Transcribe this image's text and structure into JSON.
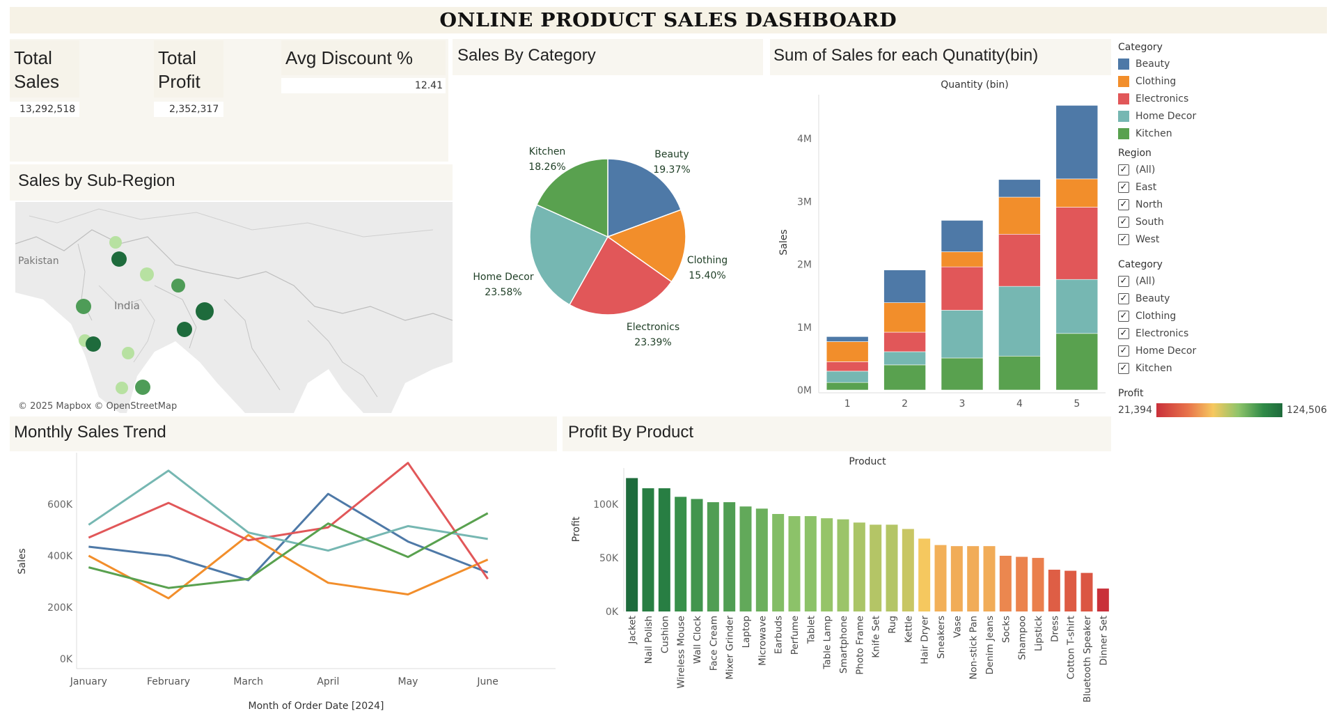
{
  "dashboard": {
    "title": "ONLINE PRODUCT SALES DASHBOARD"
  },
  "kpis": {
    "total_sales": {
      "label_line1": "Total",
      "label_line2": "Sales",
      "value": "13,292,518"
    },
    "total_profit": {
      "label_line1": "Total",
      "label_line2": "Profit",
      "value": "2,352,317"
    },
    "avg_discount": {
      "label": "Avg Discount %",
      "value": "12.41"
    }
  },
  "sections": {
    "map": "Sales by Sub-Region",
    "pie": "Sales By Category",
    "bins": "Sum of Sales for each Qunatity(bin)",
    "monthly": "Monthly Sales Trend",
    "profit": "Profit By Product"
  },
  "map": {
    "labels": {
      "country1": "Pakistan",
      "country2": "India"
    },
    "attribution": "© 2025 Mapbox  © OpenStreetMap"
  },
  "colors": {
    "Beauty": "#4e79a7",
    "Clothing": "#f28e2b",
    "Electronics": "#e15759",
    "Home Decor": "#76b7b2",
    "Kitchen": "#59a14f"
  },
  "legend": {
    "category_title": "Category",
    "categories": [
      "Beauty",
      "Clothing",
      "Electronics",
      "Home Decor",
      "Kitchen"
    ],
    "region_title": "Region",
    "regions": [
      "(All)",
      "East",
      "North",
      "South",
      "West"
    ],
    "category_filter_title": "Category",
    "category_filters": [
      "(All)",
      "Beauty",
      "Clothing",
      "Electronics",
      "Home Decor",
      "Kitchen"
    ],
    "profit_title": "Profit",
    "profit_min": "21,394",
    "profit_max": "124,506",
    "check_glyph": "✓"
  },
  "chart_data": [
    {
      "type": "pie",
      "title": "Sales By Category",
      "slices": [
        {
          "name": "Beauty",
          "value": 19.37,
          "label": "19.37%"
        },
        {
          "name": "Clothing",
          "value": 15.4,
          "label": "15.40%"
        },
        {
          "name": "Electronics",
          "value": 23.39,
          "label": "23.39%"
        },
        {
          "name": "Home Decor",
          "value": 23.58,
          "label": "23.58%"
        },
        {
          "name": "Kitchen",
          "value": 18.26,
          "label": "18.26%"
        }
      ]
    },
    {
      "type": "bar",
      "stacked": true,
      "title": "Sum of Sales for each Qunatity(bin)",
      "xlabel": "Quantity (bin)",
      "ylabel": "Sales",
      "categories": [
        "1",
        "2",
        "3",
        "4",
        "5"
      ],
      "yticks": [
        0,
        1000000,
        2000000,
        3000000,
        4000000
      ],
      "ytick_labels": [
        "0M",
        "1M",
        "2M",
        "3M",
        "4M"
      ],
      "ylim": [
        0,
        4700000
      ],
      "series": [
        {
          "name": "Kitchen",
          "values": [
            120000,
            400000,
            510000,
            540000,
            900000
          ]
        },
        {
          "name": "Home Decor",
          "values": [
            180000,
            210000,
            760000,
            1110000,
            860000
          ]
        },
        {
          "name": "Electronics",
          "values": [
            150000,
            310000,
            690000,
            830000,
            1150000
          ]
        },
        {
          "name": "Clothing",
          "values": [
            320000,
            470000,
            240000,
            590000,
            450000
          ]
        },
        {
          "name": "Beauty",
          "values": [
            80000,
            520000,
            500000,
            280000,
            1170000
          ]
        }
      ]
    },
    {
      "type": "line",
      "title": "Monthly Sales Trend",
      "xlabel": "Month of Order Date [2024]",
      "ylabel": "Sales",
      "categories": [
        "January",
        "February",
        "March",
        "April",
        "May",
        "June"
      ],
      "yticks": [
        0,
        200000,
        400000,
        600000
      ],
      "ytick_labels": [
        "0K",
        "200K",
        "400K",
        "600K"
      ],
      "ylim": [
        0,
        760000
      ],
      "series": [
        {
          "name": "Beauty",
          "values": [
            435000,
            400000,
            305000,
            640000,
            455000,
            335000
          ]
        },
        {
          "name": "Clothing",
          "values": [
            400000,
            235000,
            480000,
            295000,
            250000,
            385000
          ]
        },
        {
          "name": "Electronics",
          "values": [
            470000,
            605000,
            460000,
            510000,
            760000,
            310000
          ]
        },
        {
          "name": "Home Decor",
          "values": [
            520000,
            730000,
            490000,
            420000,
            515000,
            465000
          ]
        },
        {
          "name": "Kitchen",
          "values": [
            355000,
            275000,
            310000,
            525000,
            395000,
            565000
          ]
        }
      ]
    },
    {
      "type": "bar",
      "title": "Profit By Product",
      "xlabel": "Product",
      "ylabel": "Profit",
      "yticks": [
        0,
        50000,
        100000
      ],
      "ytick_labels": [
        "0K",
        "50K",
        "100K"
      ],
      "ylim": [
        0,
        130000
      ],
      "color_range": [
        21394,
        124506
      ],
      "categories": [
        "Jacket",
        "Nail Polish",
        "Cushion",
        "Wireless Mouse",
        "Wall Clock",
        "Face Cream",
        "Mixer Grinder",
        "Laptop",
        "Microwave",
        "Earbuds",
        "Perfume",
        "Tablet",
        "Table Lamp",
        "Smartphone",
        "Photo Frame",
        "Knife Set",
        "Rug",
        "Kettle",
        "Hair Dryer",
        "Sneakers",
        "Vase",
        "Non-stick Pan",
        "Denim Jeans",
        "Socks",
        "Shampoo",
        "Lipstick",
        "Dress",
        "Cotton T-shirt",
        "Bluetooth Speaker",
        "Dinner Set"
      ],
      "values": [
        124506,
        115000,
        115000,
        107000,
        105000,
        102000,
        102000,
        98000,
        96000,
        91000,
        89000,
        89000,
        87000,
        86000,
        83000,
        81000,
        81000,
        77000,
        68000,
        62000,
        61000,
        61000,
        61000,
        52000,
        51000,
        50000,
        39000,
        38000,
        36000,
        21394
      ]
    }
  ]
}
